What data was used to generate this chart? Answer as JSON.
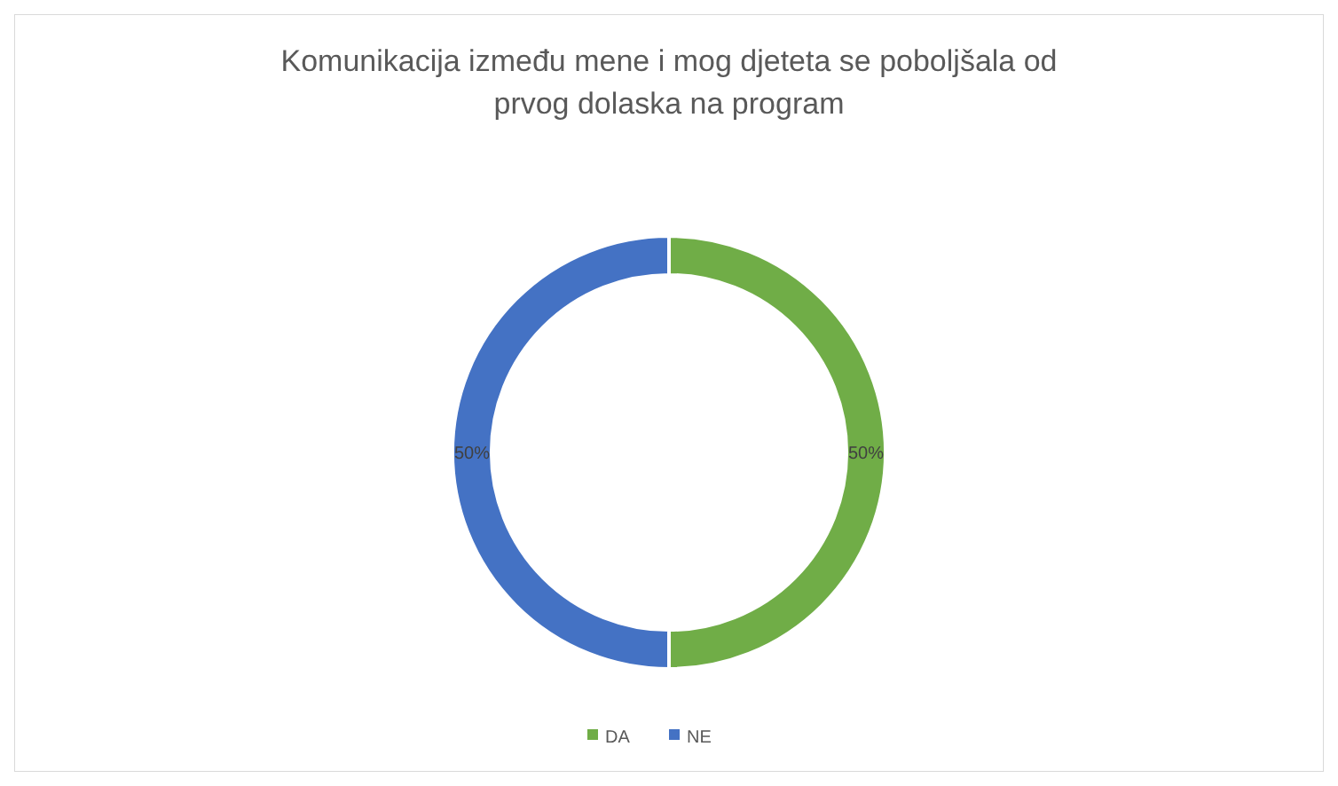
{
  "chart_data": {
    "type": "donut",
    "title": "Komunikacija između mene i mog djeteta se poboljšala od prvog dolaska na program",
    "categories": [
      "DA",
      "NE"
    ],
    "values": [
      50,
      50
    ],
    "colors": [
      "#70ad47",
      "#4472c4"
    ],
    "value_labels": [
      "50%",
      "50%"
    ],
    "legend": "bottom"
  }
}
